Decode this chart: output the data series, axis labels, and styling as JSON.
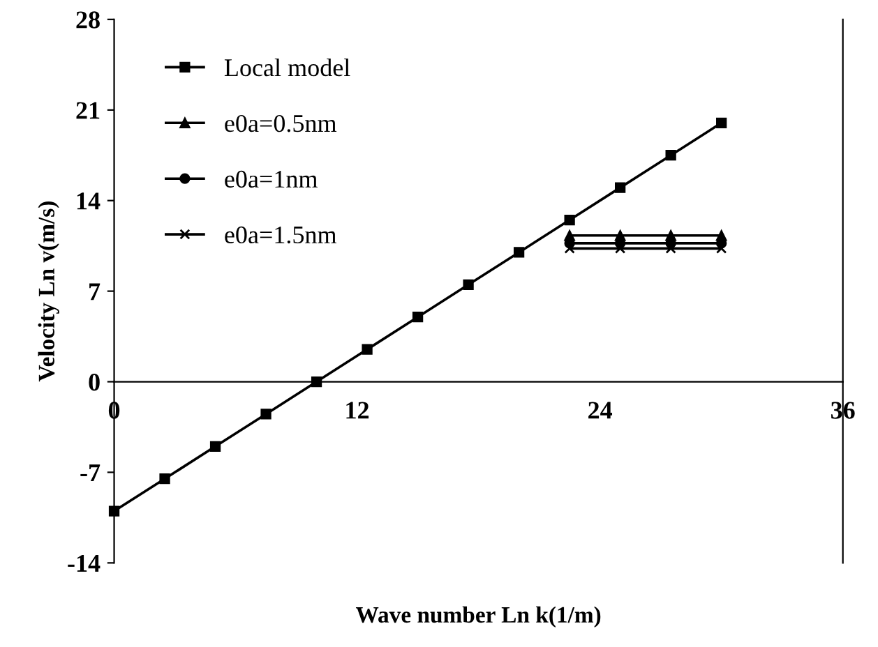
{
  "chart_data": {
    "type": "line",
    "xlabel": "Wave number Ln k(1/m)",
    "ylabel": "Velocity Ln v(m/s)",
    "x": [
      0,
      2.5,
      5,
      7.5,
      10,
      12.5,
      15,
      17.5,
      20,
      22.5,
      25,
      27.5,
      30
    ],
    "xlim": [
      0,
      36
    ],
    "xticks": [
      0,
      12,
      24,
      36
    ],
    "ylim": [
      -14,
      28
    ],
    "yticks": [
      -14,
      -7,
      0,
      7,
      14,
      21,
      28
    ],
    "grid": false,
    "legend": "top left",
    "line_style": "solid",
    "series": [
      {
        "name": "Local model",
        "color": "#000000",
        "marker": "square",
        "values": [
          -10,
          -7.5,
          -5,
          -2.5,
          0,
          2.5,
          5,
          7.5,
          10,
          12.5,
          15,
          17.5,
          20
        ]
      },
      {
        "name": "e0a=0.5nm",
        "color": "#000000",
        "marker": "triangle",
        "x": [
          22.5,
          25,
          27.5,
          30
        ],
        "values": [
          11.3,
          11.3,
          11.3,
          11.3
        ]
      },
      {
        "name": "e0a=1nm",
        "color": "#000000",
        "marker": "circle",
        "x": [
          22.5,
          25,
          27.5,
          30
        ],
        "values": [
          10.7,
          10.7,
          10.7,
          10.7
        ]
      },
      {
        "name": "e0a=1.5nm",
        "color": "#000000",
        "marker": "cross",
        "x": [
          22.5,
          25,
          27.5,
          30
        ],
        "values": [
          10.3,
          10.3,
          10.3,
          10.3
        ]
      }
    ]
  }
}
